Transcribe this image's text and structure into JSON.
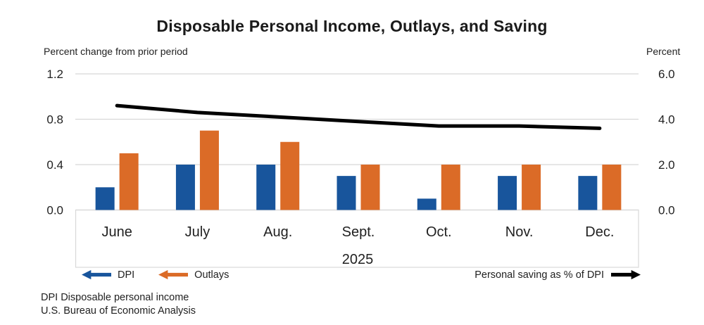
{
  "title": "Disposable Personal Income, Outlays, and Saving",
  "legend": {
    "dpi": "DPI",
    "outlays": "Outlays",
    "saving": "Personal saving as % of DPI"
  },
  "footnotes": [
    "DPI Disposable personal income",
    "U.S. Bureau of Economic Analysis"
  ],
  "colors": {
    "dpi": "#18559C",
    "outlays": "#DB6B27",
    "saving_line": "#000000",
    "grid": "#D8D8D8",
    "text": "#212121"
  },
  "chart_data": {
    "type": "bar+line",
    "title": "Disposable Personal Income, Outlays, and Saving",
    "categories": [
      "June",
      "July",
      "Aug.",
      "Sept.",
      "Oct.",
      "Nov.",
      "Dec."
    ],
    "year_label": "2025",
    "series": [
      {
        "name": "DPI",
        "type": "bar",
        "axis": "left",
        "values": [
          0.2,
          0.4,
          0.4,
          0.3,
          0.1,
          0.3,
          0.3
        ]
      },
      {
        "name": "Outlays",
        "type": "bar",
        "axis": "left",
        "values": [
          0.5,
          0.7,
          0.6,
          0.4,
          0.4,
          0.4,
          0.4
        ]
      },
      {
        "name": "Personal saving as % of DPI",
        "type": "line",
        "axis": "right",
        "values": [
          4.6,
          4.3,
          4.1,
          3.9,
          3.7,
          3.7,
          3.6
        ]
      }
    ],
    "left_axis": {
      "label": "Percent change from prior period",
      "ticks": [
        0.0,
        0.4,
        0.8,
        1.2
      ],
      "range": [
        0,
        1.2
      ]
    },
    "right_axis": {
      "label": "Percent",
      "ticks": [
        0.0,
        2.0,
        4.0,
        6.0
      ],
      "range": [
        0,
        6.0
      ]
    },
    "grid": true,
    "legend_position": "bottom"
  }
}
